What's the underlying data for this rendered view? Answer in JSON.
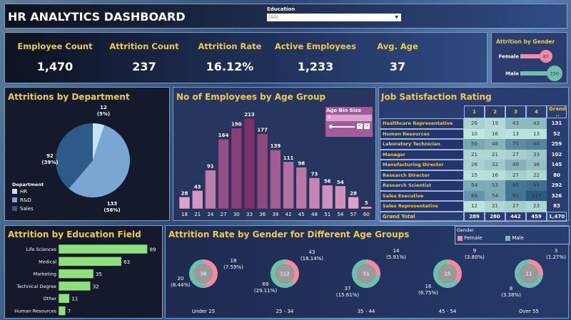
{
  "header": {
    "title": "HR ANALYTICS DASHBOARD",
    "filter_label": "Education",
    "filter_value": "(All)"
  },
  "kpis": [
    {
      "label": "Employee Count",
      "value": "1,470"
    },
    {
      "label": "Attrition Count",
      "value": "237"
    },
    {
      "label": "Attrition Rate",
      "value": "16.12%"
    },
    {
      "label": "Active Employees",
      "value": "1,233"
    },
    {
      "label": "Avg. Age",
      "value": "37"
    }
  ],
  "colors": {
    "female": "#f08ca0",
    "male": "#6fbfae",
    "title": "#f1c94a",
    "bar_green": "#8ee07a"
  },
  "chart_data": [
    {
      "id": "gender",
      "type": "bar",
      "title": "Attrition by Gender",
      "categories": [
        "Female",
        "Male"
      ],
      "values": [
        87,
        150
      ]
    },
    {
      "id": "department",
      "type": "pie",
      "title": "Attritions by Department",
      "legend_title": "Department",
      "categories": [
        "HR",
        "R&D",
        "Sales"
      ],
      "values": [
        12,
        133,
        92
      ],
      "labels": [
        "12\n(5%)",
        "133\n(56%)",
        "92\n(39%)"
      ],
      "colors": [
        "#c6e2f5",
        "#7aa6d4",
        "#2e5a8a"
      ]
    },
    {
      "id": "age",
      "type": "bar",
      "title": "No of Employees by Age Group",
      "categories": [
        "18",
        "21",
        "24",
        "27",
        "30",
        "33",
        "36",
        "39",
        "42",
        "45",
        "48",
        "51",
        "54",
        "57",
        "60"
      ],
      "values": [
        28,
        43,
        91,
        164,
        190,
        213,
        177,
        139,
        111,
        98,
        73,
        56,
        54,
        28,
        5
      ],
      "param_label": "Age Bin Size",
      "param_value": "3"
    },
    {
      "id": "jobsat",
      "type": "heatmap",
      "title": "Job Satisfaction Rating",
      "columns": [
        "1",
        "2",
        "3",
        "4",
        "Grand .."
      ],
      "rows": [
        {
          "label": "Healthcare Representative",
          "values": [
            26,
            19,
            43,
            43
          ],
          "total": "131"
        },
        {
          "label": "Human Resources",
          "values": [
            10,
            16,
            13,
            13
          ],
          "total": "52"
        },
        {
          "label": "Laboratory Technician",
          "values": [
            56,
            48,
            75,
            80
          ],
          "total": "259"
        },
        {
          "label": "Manager",
          "values": [
            21,
            21,
            27,
            33
          ],
          "total": "102"
        },
        {
          "label": "Manufacturing Director",
          "values": [
            26,
            32,
            49,
            38
          ],
          "total": "145"
        },
        {
          "label": "Research Director",
          "values": [
            15,
            16,
            27,
            22
          ],
          "total": "80"
        },
        {
          "label": "Research Scientist",
          "values": [
            54,
            53,
            90,
            95
          ],
          "total": "292"
        },
        {
          "label": "Sales Executive",
          "values": [
            69,
            54,
            91,
            117
          ],
          "total": "326"
        },
        {
          "label": "Sales Representative",
          "values": [
            12,
            21,
            27,
            23
          ],
          "total": "83"
        }
      ],
      "grand_total": {
        "label": "Grand Total",
        "values": [
          "289",
          "280",
          "442",
          "459"
        ],
        "total": "1,470"
      }
    },
    {
      "id": "edu",
      "type": "bar",
      "orientation": "horizontal",
      "title": "Attrition by Education Field",
      "categories": [
        "Life Sciences",
        "Medical",
        "Marketing",
        "Technical Degree",
        "Other",
        "Human Resources"
      ],
      "values": [
        89,
        63,
        35,
        32,
        11,
        7
      ]
    },
    {
      "id": "agegender",
      "type": "pie",
      "title": "Attrition Rate by Gender for Different Age Groups",
      "legend_title": "Gender",
      "legend": [
        "Female",
        "Male"
      ],
      "groups": [
        {
          "label": "Under 25",
          "total": "38",
          "female": 18,
          "male": 20,
          "female_label": "18\n(7.59%)",
          "male_label": "20\n(8.44%)"
        },
        {
          "label": "25 - 34",
          "total": "112",
          "female": 43,
          "male": 69,
          "female_label": "43\n(18.14%)",
          "male_label": "69\n(29.11%)"
        },
        {
          "label": "35 - 44",
          "total": "51",
          "female": 14,
          "male": 37,
          "female_label": "14\n(5.91%)",
          "male_label": "37\n(15.61%)"
        },
        {
          "label": "45 - 54",
          "total": "25",
          "female": 9,
          "male": 16,
          "female_label": "9\n(3.80%)",
          "male_label": "16\n(6.75%)"
        },
        {
          "label": "Over 55",
          "total": "11",
          "female": 3,
          "male": 8,
          "female_label": "3\n(1.27%)",
          "male_label": "8\n(3.38%)"
        }
      ]
    }
  ]
}
